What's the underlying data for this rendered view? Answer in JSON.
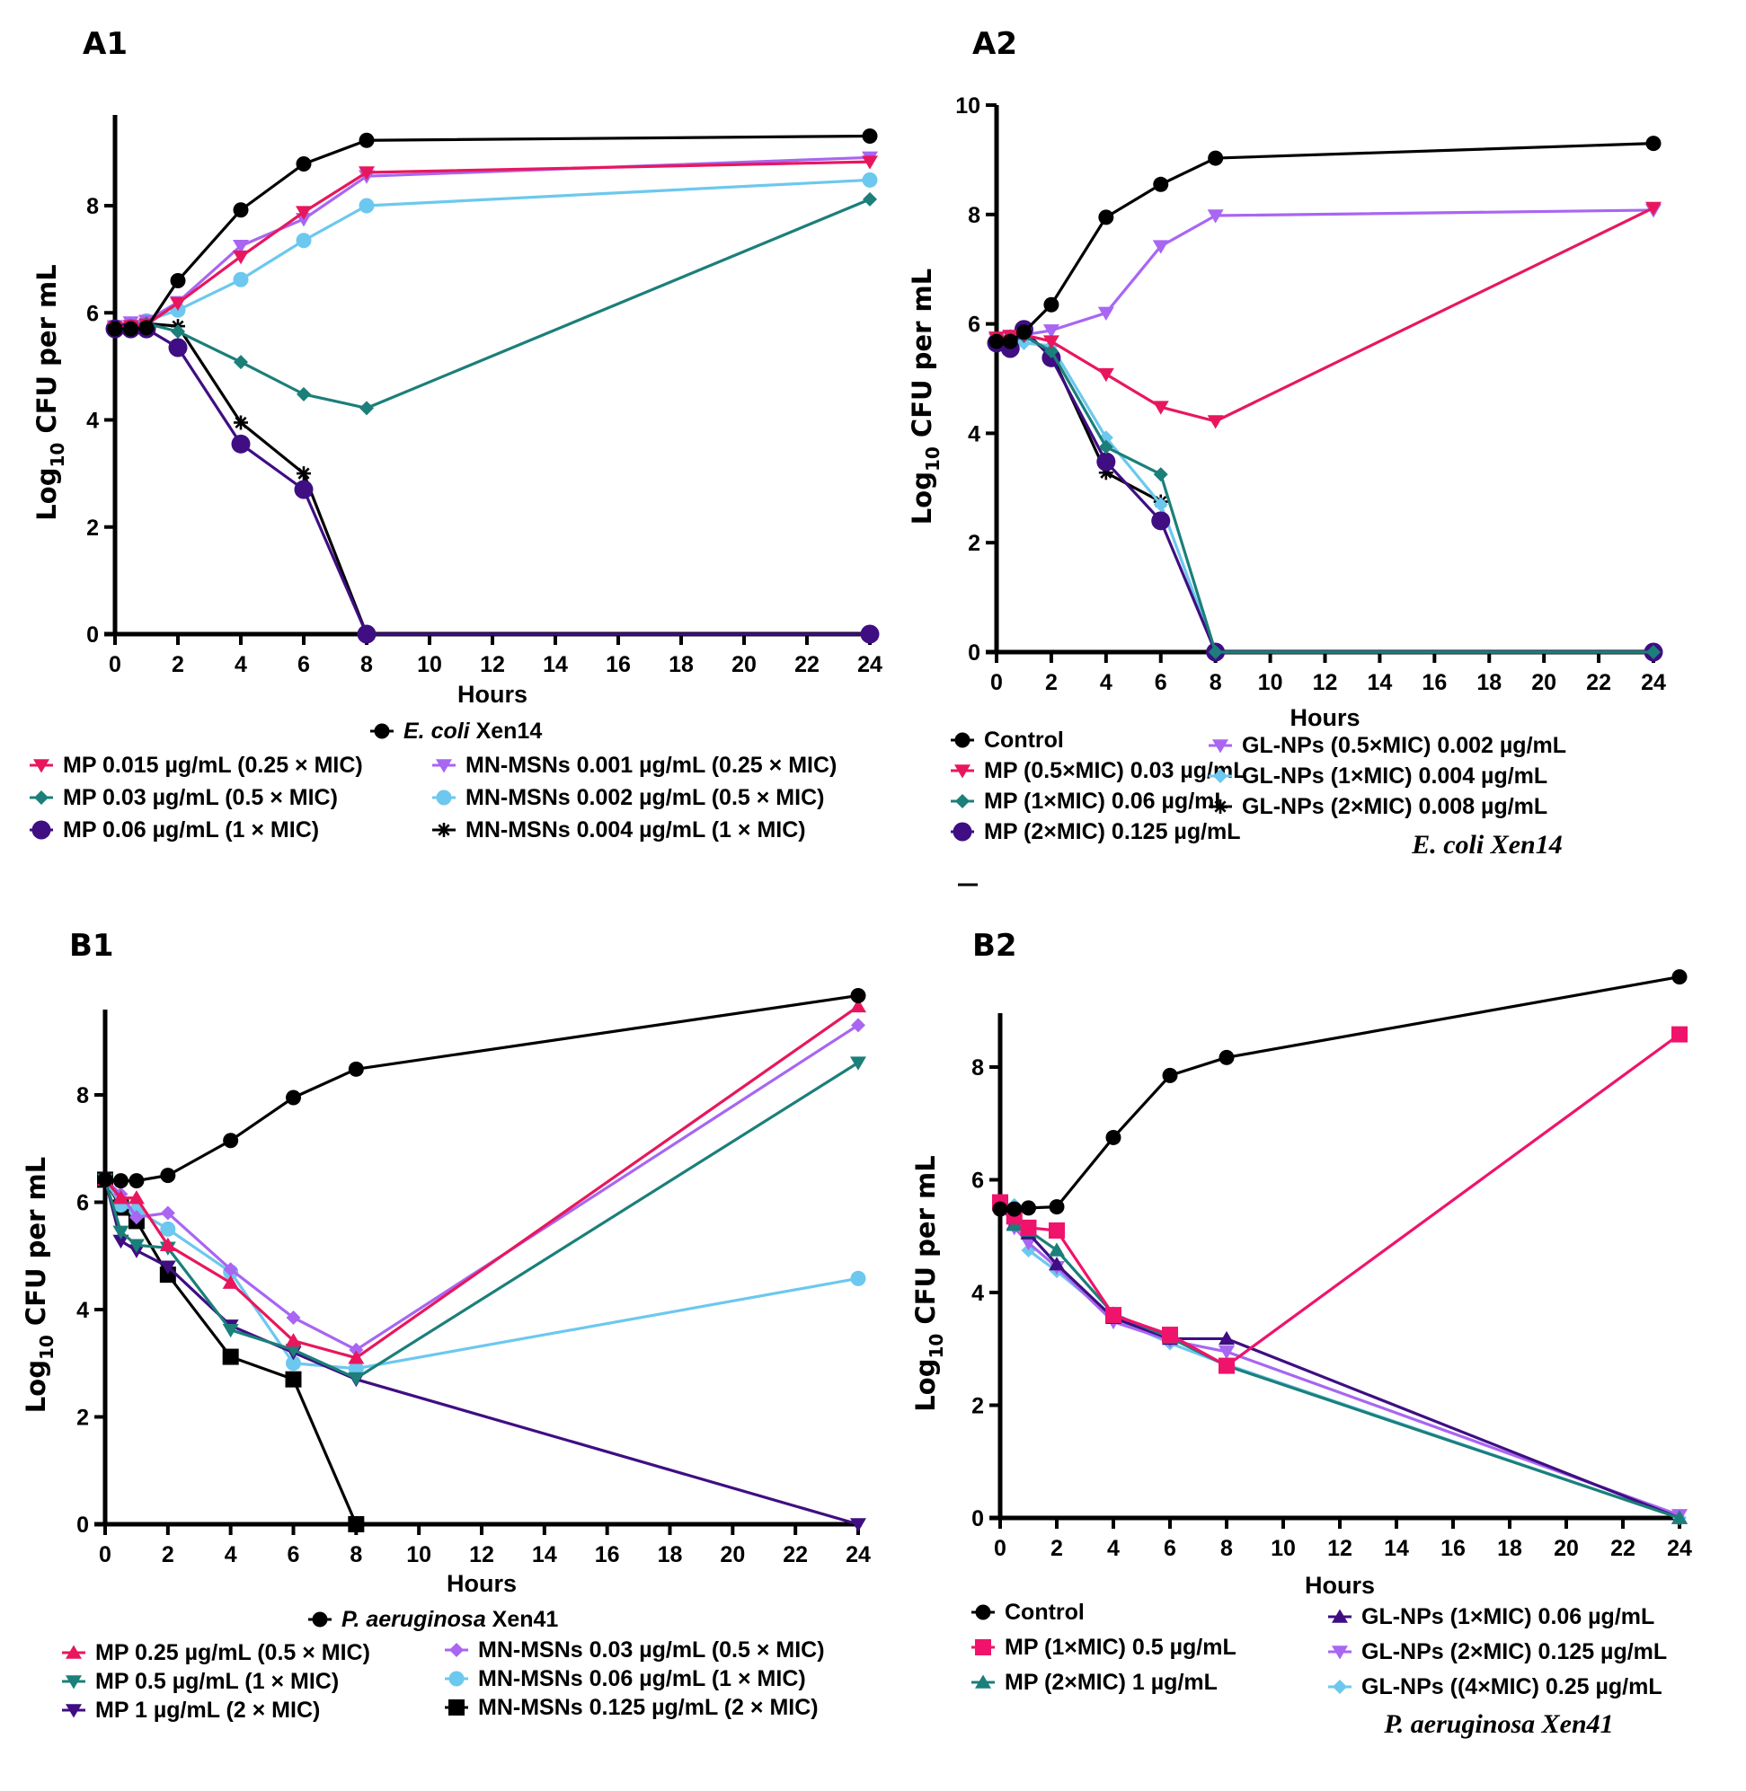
{
  "figure": {
    "panels": [
      "A1",
      "A2",
      "B1",
      "B2"
    ]
  },
  "chart_data": [
    {
      "id": "A1",
      "type": "line",
      "panel_label": "A1",
      "title": "",
      "xlabel": "Hours",
      "ylabel_main": "Log",
      "ylabel_sub": "10",
      "ylabel_rest": " CFU per mL",
      "x_ticks": [
        0,
        2,
        4,
        6,
        8,
        10,
        12,
        14,
        16,
        18,
        20,
        22,
        24
      ],
      "y_ticks": [
        0,
        2,
        4,
        6,
        8
      ],
      "xlim": [
        0,
        24
      ],
      "ylim": [
        0,
        9.6
      ],
      "grid": false,
      "legend_title_italic": "E. coli",
      "legend_title_rest": " Xen14",
      "legend_placement": "bottom",
      "series": [
        {
          "name": "E. coli Xen14",
          "color": "#000000",
          "marker": "circle",
          "x": [
            0,
            0.5,
            1,
            2,
            4,
            6,
            8,
            24
          ],
          "y": [
            5.7,
            5.7,
            5.72,
            6.6,
            7.92,
            8.78,
            9.22,
            9.3
          ],
          "in_legend_title": true
        },
        {
          "name": "MP 0.015 µg/mL (0.25 × MIC)",
          "color": "#E8175D",
          "marker": "triangle-down",
          "x": [
            0,
            0.5,
            1,
            2,
            4,
            6,
            8,
            24
          ],
          "y": [
            5.72,
            5.75,
            5.78,
            6.18,
            7.05,
            7.88,
            8.62,
            8.82
          ]
        },
        {
          "name": "MP 0.03 µg/mL (0.5 × MIC)",
          "color": "#1B7F7A",
          "marker": "diamond",
          "x": [
            0,
            0.5,
            1,
            2,
            4,
            6,
            8,
            24
          ],
          "y": [
            5.72,
            5.75,
            5.8,
            5.65,
            5.08,
            4.48,
            4.22,
            8.12
          ]
        },
        {
          "name": "MP 0.06 µg/mL (1 × MIC)",
          "color": "#3F0E82",
          "marker": "circle-lg",
          "x": [
            0,
            0.5,
            1,
            2,
            4,
            6,
            8,
            24
          ],
          "y": [
            5.7,
            5.7,
            5.7,
            5.35,
            3.55,
            2.7,
            0,
            0
          ]
        },
        {
          "name": "MN-MSNs 0.001 µg/mL (0.25 × MIC)",
          "color": "#A866F2",
          "marker": "triangle-down",
          "x": [
            0,
            0.5,
            1,
            2,
            4,
            6,
            8,
            24
          ],
          "y": [
            5.75,
            5.82,
            5.85,
            6.2,
            7.25,
            7.75,
            8.55,
            8.9
          ]
        },
        {
          "name": "MN-MSNs 0.002 µg/mL (0.5 × MIC)",
          "color": "#6CC8EE",
          "marker": "circle",
          "x": [
            0,
            0.5,
            1,
            2,
            4,
            6,
            8,
            24
          ],
          "y": [
            5.72,
            5.78,
            5.85,
            6.05,
            6.62,
            7.35,
            8.0,
            8.48
          ]
        },
        {
          "name": "MN-MSNs 0.004 µg/mL (1 × MIC)",
          "color": "#000000",
          "marker": "asterisk",
          "x": [
            0,
            0.5,
            1,
            2,
            4,
            6,
            8,
            24
          ],
          "y": [
            5.72,
            5.75,
            5.8,
            5.75,
            3.95,
            3.0,
            0,
            0
          ]
        }
      ],
      "legend_columns": [
        [
          1,
          2,
          3
        ],
        [
          4,
          5,
          6
        ]
      ]
    },
    {
      "id": "A2",
      "type": "line",
      "panel_label": "A2",
      "title": "",
      "xlabel": "Hours",
      "ylabel_main": "Log",
      "ylabel_sub": "10",
      "ylabel_rest": " CFU per mL",
      "x_ticks": [
        0,
        2,
        4,
        6,
        8,
        10,
        12,
        14,
        16,
        18,
        20,
        22,
        24
      ],
      "y_ticks": [
        0,
        2,
        4,
        6,
        8,
        10
      ],
      "xlim": [
        0,
        24
      ],
      "ylim": [
        0,
        10
      ],
      "grid": false,
      "species_caption": "E. coli Xen14",
      "legend_placement": "bottom",
      "series": [
        {
          "name": "Control",
          "color": "#000000",
          "marker": "circle",
          "x": [
            0,
            0.5,
            1,
            2,
            4,
            6,
            8,
            24
          ],
          "y": [
            5.68,
            5.68,
            5.85,
            6.35,
            7.95,
            8.55,
            9.03,
            9.3
          ]
        },
        {
          "name": "MP (0.5×MIC) 0.03 µg/mL",
          "color": "#E8175D",
          "marker": "triangle-down",
          "x": [
            0,
            0.5,
            1,
            2,
            4,
            6,
            8,
            24
          ],
          "y": [
            5.75,
            5.78,
            5.8,
            5.68,
            5.08,
            4.48,
            4.22,
            8.12
          ]
        },
        {
          "name": "MP (1×MIC) 0.06 µg/mL",
          "color": "#1B7F7A",
          "marker": "diamond",
          "x": [
            0,
            0.5,
            1,
            2,
            4,
            6,
            8,
            24
          ],
          "y": [
            5.72,
            5.75,
            5.78,
            5.5,
            3.75,
            3.25,
            0,
            0
          ]
        },
        {
          "name": "MP (2×MIC) 0.125 µg/mL",
          "color": "#3F0E82",
          "marker": "circle-lg",
          "x": [
            0,
            0.5,
            1,
            2,
            4,
            6,
            8,
            24
          ],
          "y": [
            5.65,
            5.55,
            5.9,
            5.38,
            3.48,
            2.4,
            0,
            0
          ]
        },
        {
          "name": "GL-NPs (0.5×MIC) 0.002 µg/mL",
          "color": "#A866F2",
          "marker": "triangle-down",
          "x": [
            0,
            0.5,
            1,
            2,
            4,
            6,
            8,
            24
          ],
          "y": [
            5.72,
            5.78,
            5.8,
            5.88,
            6.2,
            7.42,
            7.98,
            8.08
          ]
        },
        {
          "name": "GL-NPs (1×MIC) 0.004 µg/mL",
          "color": "#6CC8EE",
          "marker": "diamond",
          "x": [
            0,
            0.5,
            1,
            2,
            4,
            6,
            8,
            24
          ],
          "y": [
            5.72,
            5.78,
            5.65,
            5.6,
            3.92,
            2.7,
            0,
            0
          ]
        },
        {
          "name": "GL-NPs (2×MIC) 0.008 µg/mL",
          "color": "#000000",
          "marker": "asterisk",
          "x": [
            0,
            0.5,
            1,
            2,
            4,
            6
          ],
          "y": [
            5.72,
            5.75,
            5.8,
            5.45,
            3.28,
            2.75
          ]
        }
      ],
      "legend_columns": [
        [
          0,
          1,
          2,
          3
        ],
        [
          4,
          5,
          6
        ]
      ]
    },
    {
      "id": "B1",
      "type": "line",
      "panel_label": "B1",
      "title": "",
      "xlabel": "Hours",
      "ylabel_main": "Log",
      "ylabel_sub": "10",
      "ylabel_rest": " CFU per mL",
      "x_ticks": [
        0,
        2,
        4,
        6,
        8,
        10,
        12,
        14,
        16,
        18,
        20,
        22,
        24
      ],
      "y_ticks": [
        0,
        2,
        4,
        6,
        8
      ],
      "xlim": [
        0,
        24
      ],
      "ylim": [
        0,
        9.7
      ],
      "grid": false,
      "legend_title_italic": "P. aeruginosa",
      "legend_title_rest": " Xen41",
      "legend_placement": "bottom",
      "series": [
        {
          "name": "P. aeruginosa Xen41",
          "color": "#000000",
          "marker": "circle",
          "x": [
            0,
            0.5,
            1,
            2,
            4,
            6,
            8,
            24
          ],
          "y": [
            6.42,
            6.4,
            6.4,
            6.5,
            7.15,
            7.95,
            8.48,
            9.85
          ],
          "in_legend_title": true
        },
        {
          "name": "MP 0.25 µg/mL (0.5 × MIC)",
          "color": "#E8175D",
          "marker": "triangle-up",
          "x": [
            0,
            0.5,
            1,
            2,
            4,
            6,
            8,
            24
          ],
          "y": [
            6.42,
            6.08,
            6.08,
            5.2,
            4.5,
            3.42,
            3.1,
            9.65
          ]
        },
        {
          "name": "MP 0.5 µg/mL (1 × MIC)",
          "color": "#1B7F7A",
          "marker": "triangle-down",
          "x": [
            0,
            0.5,
            1,
            2,
            4,
            6,
            8,
            24
          ],
          "y": [
            6.42,
            5.45,
            5.2,
            5.15,
            3.62,
            3.25,
            2.72,
            8.6
          ]
        },
        {
          "name": "MP 1 µg/mL (2 × MIC)",
          "color": "#3F0E82",
          "marker": "triangle-down",
          "x": [
            0,
            0.5,
            1,
            2,
            4,
            6,
            8,
            24
          ],
          "y": [
            6.42,
            5.28,
            5.1,
            4.8,
            3.7,
            3.2,
            2.7,
            0
          ]
        },
        {
          "name": "MN-MSNs 0.03 µg/mL (0.5 × MIC)",
          "color": "#A866F2",
          "marker": "diamond",
          "x": [
            0,
            0.5,
            1,
            2,
            4,
            6,
            8,
            24
          ],
          "y": [
            6.42,
            6.15,
            5.72,
            5.8,
            4.75,
            3.85,
            3.25,
            9.3
          ]
        },
        {
          "name": "MN-MSNs 0.06 µg/mL (1 × MIC)",
          "color": "#6CC8EE",
          "marker": "circle",
          "x": [
            0,
            0.5,
            1,
            2,
            4,
            6,
            8,
            24
          ],
          "y": [
            6.42,
            5.95,
            5.85,
            5.5,
            4.7,
            3.0,
            2.9,
            4.58
          ]
        },
        {
          "name": "MN-MSNs 0.125 µg/mL (2 × MIC)",
          "color": "#000000",
          "marker": "square",
          "x": [
            0,
            0.5,
            1,
            2,
            4,
            6,
            8
          ],
          "y": [
            6.42,
            5.9,
            5.65,
            4.65,
            3.12,
            2.7,
            0
          ]
        }
      ],
      "legend_columns": [
        [
          1,
          2,
          3
        ],
        [
          4,
          5,
          6
        ]
      ]
    },
    {
      "id": "B2",
      "type": "line",
      "panel_label": "B2",
      "title": "",
      "xlabel": "Hours",
      "ylabel_main": "Log",
      "ylabel_sub": "10",
      "ylabel_rest": " CFU per mL",
      "x_ticks": [
        0,
        2,
        4,
        6,
        8,
        10,
        12,
        14,
        16,
        18,
        20,
        22,
        24
      ],
      "y_ticks": [
        0,
        2,
        4,
        6,
        8
      ],
      "xlim": [
        0,
        24
      ],
      "ylim": [
        0,
        9
      ],
      "grid": false,
      "species_caption": "P. aeruginosa Xen41",
      "legend_placement": "bottom",
      "series": [
        {
          "name": "Control",
          "color": "#000000",
          "marker": "circle",
          "x": [
            0,
            0.5,
            1,
            2,
            4,
            6,
            8,
            24
          ],
          "y": [
            5.48,
            5.48,
            5.5,
            5.52,
            6.75,
            7.85,
            8.17,
            9.6
          ]
        },
        {
          "name": "MP (1×MIC) 0.5 µg/mL",
          "color": "#F0136B",
          "marker": "square",
          "x": [
            0,
            0.5,
            1,
            2,
            4,
            6,
            8,
            24
          ],
          "y": [
            5.6,
            5.35,
            5.15,
            5.1,
            3.6,
            3.25,
            2.7,
            8.58
          ]
        },
        {
          "name": "MP (2×MIC) 1 µg/mL",
          "color": "#1B7F7A",
          "marker": "triangle-up",
          "x": [
            0,
            0.5,
            1,
            2,
            4,
            6,
            8,
            24
          ],
          "y": [
            5.55,
            5.2,
            5.1,
            4.75,
            3.62,
            3.2,
            2.7,
            0
          ]
        },
        {
          "name": "GL-NPs (1×MIC) 0.06 µg/mL",
          "color": "#3F0E82",
          "marker": "triangle-up",
          "x": [
            0,
            0.5,
            1,
            2,
            4,
            6,
            8,
            24
          ],
          "y": [
            5.55,
            5.22,
            5.05,
            4.5,
            3.55,
            3.18,
            3.18,
            0
          ]
        },
        {
          "name": "GL-NPs (2×MIC) 0.125 µg/mL",
          "color": "#A866F2",
          "marker": "triangle-down",
          "x": [
            0,
            0.5,
            1,
            2,
            4,
            6,
            8,
            24
          ],
          "y": [
            5.6,
            5.15,
            4.88,
            4.45,
            3.48,
            3.15,
            2.95,
            0.05
          ]
        },
        {
          "name": "GL-NPs ((4×MIC) 0.25 µg/mL",
          "color": "#6CC8EE",
          "marker": "diamond",
          "x": [
            0,
            0.5,
            1,
            2,
            4,
            6,
            8,
            24
          ],
          "y": [
            5.58,
            5.55,
            4.75,
            4.38,
            3.55,
            3.1,
            2.72,
            0
          ]
        }
      ],
      "legend_columns": [
        [
          0,
          1,
          2
        ],
        [
          3,
          4,
          5
        ]
      ]
    }
  ]
}
